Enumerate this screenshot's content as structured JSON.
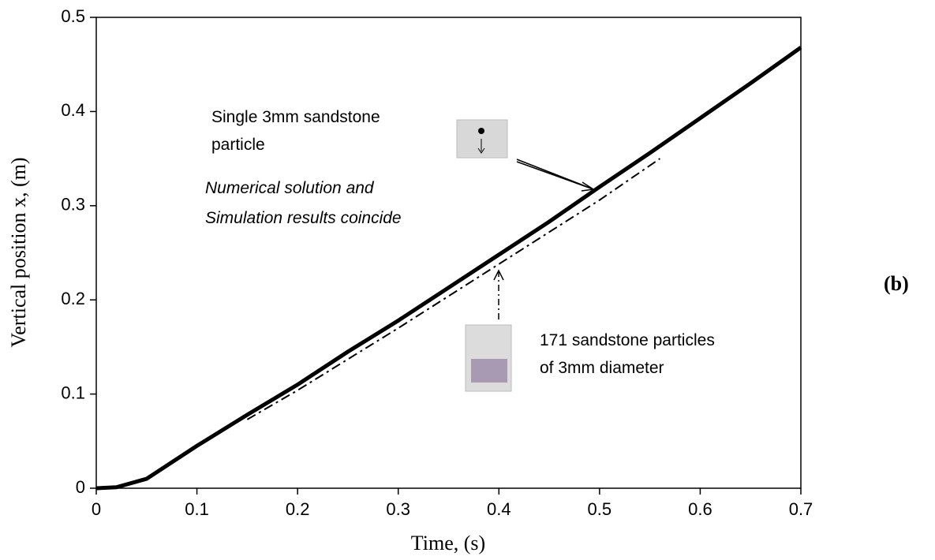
{
  "chart_data": {
    "type": "line",
    "xlabel": "Time, (s)",
    "ylabel": "Vertical position x, (m)",
    "xlim": [
      0,
      0.7
    ],
    "xticks": [
      0,
      0.1,
      0.2,
      0.3,
      0.4,
      0.5,
      0.6,
      0.7
    ],
    "ylim": [
      0,
      0.5
    ],
    "yticks": [
      0,
      0.1,
      0.2,
      0.3,
      0.4,
      0.5
    ],
    "series": [
      {
        "color": "#000000",
        "style": "solid",
        "x": [
          0,
          0.02,
          0.05,
          0.1,
          0.15,
          0.2,
          0.25,
          0.3,
          0.35,
          0.4,
          0.45,
          0.5,
          0.55,
          0.6,
          0.65,
          0.7
        ],
        "values": [
          0,
          0.001,
          0.01,
          0.045,
          0.078,
          0.11,
          0.145,
          0.178,
          0.213,
          0.248,
          0.283,
          0.32,
          0.356,
          0.393,
          0.43,
          0.468
        ]
      },
      {
        "color": "#000000",
        "style": "dashdot",
        "x": [
          0.15,
          0.2,
          0.3,
          0.4,
          0.5,
          0.56
        ],
        "values": [
          0.073,
          0.104,
          0.17,
          0.238,
          0.306,
          0.35
        ]
      }
    ],
    "annotations": [
      "Single 3mm sandstone",
      "particle",
      "Numerical solution and",
      "Simulation results coincide",
      "171 sandstone particles",
      "of 3mm diameter",
      "(b)"
    ]
  }
}
